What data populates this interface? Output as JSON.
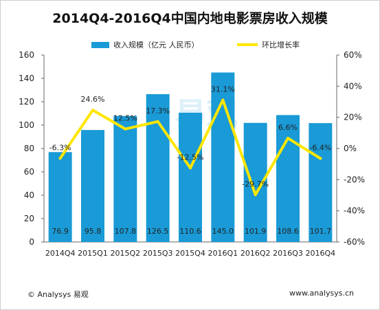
{
  "chart_data": {
    "type": "bar",
    "title": "2014Q4-2016Q4中国内地电影票房收入规模",
    "categories": [
      "2014Q4",
      "2015Q1",
      "2015Q2",
      "2015Q3",
      "2015Q4",
      "2016Q1",
      "2016Q2",
      "2016Q3",
      "2016Q4"
    ],
    "series": [
      {
        "name": "收入规模（亿元 人民币）",
        "type": "bar",
        "axis": "left",
        "color": "#1a9ad6",
        "values": [
          76.9,
          95.8,
          107.8,
          126.5,
          110.6,
          145.0,
          101.9,
          108.6,
          101.7
        ],
        "labels": [
          "76.9",
          "95.8",
          "107.8",
          "126.5",
          "110.6",
          "145.0",
          "101.9",
          "108.6",
          "101.7"
        ]
      },
      {
        "name": "环比增长率",
        "type": "line",
        "axis": "right",
        "color": "#ffe600",
        "values": [
          -6.3,
          24.6,
          12.5,
          17.3,
          -12.5,
          31.1,
          -29.7,
          6.6,
          -6.4
        ],
        "labels": [
          "-6.3%",
          "24.6%",
          "12.5%",
          "17.3%",
          "-12.5%",
          "31.1%",
          "-29.7%",
          "6.6%",
          "-6.4%"
        ]
      }
    ],
    "y_left": {
      "range": [
        0,
        160
      ],
      "ticks": [
        "0",
        "20",
        "40",
        "60",
        "80",
        "100",
        "120",
        "140",
        "160"
      ]
    },
    "y_right": {
      "range": [
        -60,
        60
      ],
      "ticks": [
        "-60%",
        "-40%",
        "-20%",
        "0%",
        "20%",
        "40%",
        "60%"
      ]
    },
    "grid": false,
    "legend_position": "top-center"
  },
  "footer": {
    "source": "© Analysys 易观",
    "url": "www.analysys.cn"
  },
  "watermark": {
    "text": "易观"
  }
}
